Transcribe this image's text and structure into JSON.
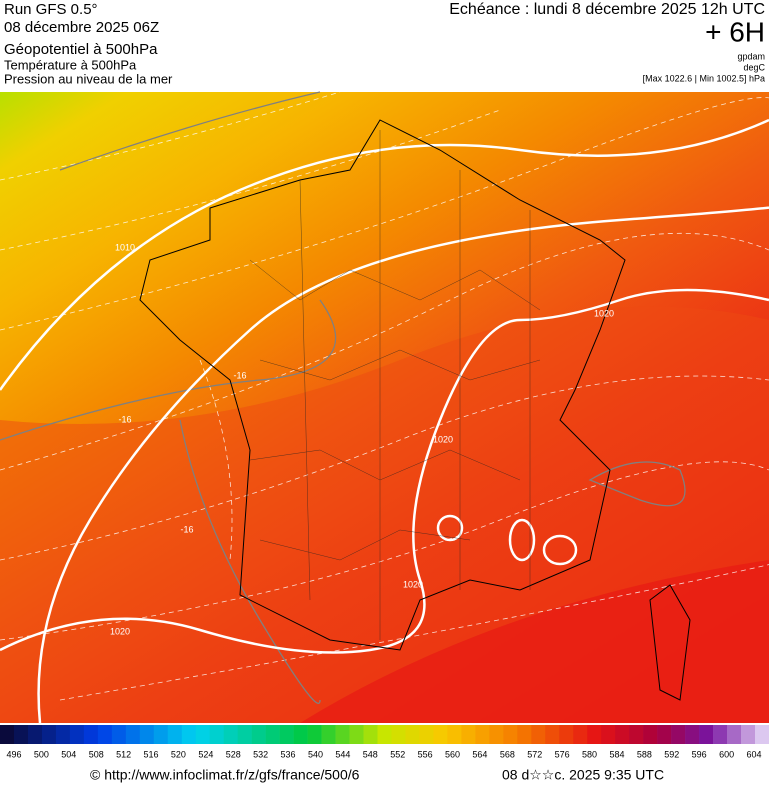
{
  "header": {
    "run": "Run GFS 0.5°",
    "date": "08 décembre 2025 06Z",
    "field1": "Géopotentiel à 500hPa",
    "field2": "Température à 500hPa",
    "field3": "Pression au niveau de la mer",
    "echeance": "Echéance : lundi 8 décembre 2025 12h UTC",
    "offset": "+ 6H",
    "unit1": "gpdam",
    "unit2": "degC",
    "range": "[Max 1022.6 | Min 1002.5] hPa"
  },
  "map": {
    "contour_labels": [
      "1010",
      "1020",
      "1020",
      "1020",
      "1020",
      "-16",
      "-16",
      "-16"
    ]
  },
  "legend": {
    "labels": [
      496,
      500,
      504,
      508,
      512,
      516,
      520,
      524,
      528,
      532,
      536,
      540,
      544,
      548,
      552,
      556,
      560,
      564,
      568,
      572,
      576,
      580,
      584,
      588,
      592,
      596,
      600,
      604
    ]
  },
  "footer": {
    "source": "© http://www.infoclimat.fr/z/gfs/france/500/6",
    "generated": "08 d☆☆c. 2025  9:35 UTC"
  }
}
